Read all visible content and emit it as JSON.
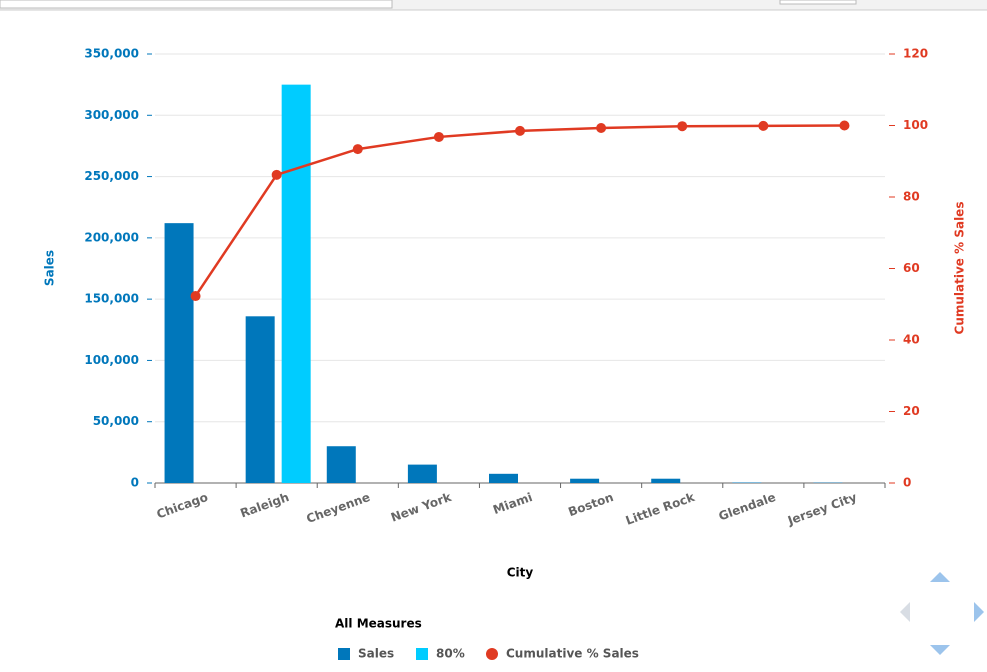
{
  "chart_data": {
    "type": "pareto",
    "x_label": "City",
    "y_label": "Sales",
    "y2_label": "Cumulative % Sales",
    "legend_title": "All Measures",
    "categories": [
      "Chicago",
      "Raleigh",
      "Cheyenne",
      "New York",
      "Miami",
      "Boston",
      "Little Rock",
      "Glendale",
      "Jersey City"
    ],
    "series": [
      {
        "name": "Sales",
        "kind": "bar",
        "color": "#0077bb",
        "values": [
          212000,
          136000,
          30000,
          15000,
          7500,
          3500,
          3500,
          400,
          300
        ]
      },
      {
        "name": "80%",
        "kind": "bar",
        "color": "#00ccff",
        "values": [
          null,
          325000,
          null,
          null,
          null,
          null,
          null,
          null,
          null
        ]
      },
      {
        "name": "Cumulative % Sales",
        "kind": "line",
        "axis": "y2",
        "color": "#e03a22",
        "values": [
          52.3,
          86.2,
          93.4,
          96.8,
          98.5,
          99.3,
          99.8,
          99.9,
          100
        ]
      }
    ],
    "ylim": [
      0,
      350000
    ],
    "yticks": [
      0,
      {
        "value": 50000,
        "label": "50,000"
      },
      {
        "value": 100000,
        "label": "100,000"
      },
      {
        "value": 150000,
        "label": "150,000"
      },
      {
        "value": 200000,
        "label": "200,000"
      },
      {
        "value": 250000,
        "label": "250,000"
      },
      {
        "value": 300000,
        "label": "300,000"
      },
      {
        "value": 350000,
        "label": "350,000"
      }
    ],
    "y2lim": [
      0,
      120
    ],
    "y2ticks": [
      0,
      20,
      40,
      60,
      80,
      100,
      120
    ],
    "grid": true
  }
}
